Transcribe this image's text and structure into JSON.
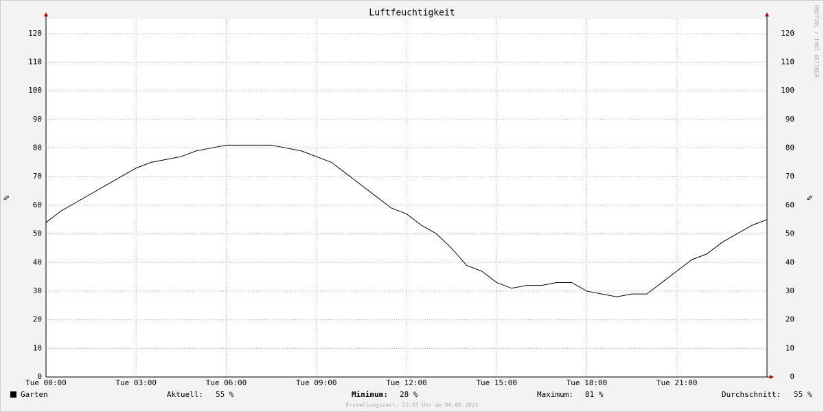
{
  "chart_data": {
    "type": "line",
    "title": "Luftfeuchtigkeit",
    "ylabel": "%",
    "y2label": "%",
    "watermark": "RRDTOOL / TOBI OETIKER",
    "x": [
      0,
      0.5,
      1,
      1.5,
      2,
      2.5,
      3,
      3.5,
      4,
      4.5,
      5,
      5.5,
      6,
      6.5,
      7,
      7.5,
      8,
      8.5,
      9,
      9.5,
      10,
      10.5,
      11,
      11.5,
      12,
      12.5,
      13,
      13.5,
      14,
      14.5,
      15,
      15.5,
      16,
      16.5,
      17,
      17.5,
      18,
      18.5,
      19,
      19.5,
      20,
      20.5,
      21,
      21.5,
      22,
      22.5,
      23,
      23.5,
      24
    ],
    "series": [
      {
        "name": "Garten",
        "color": "#000000",
        "values": [
          54,
          58,
          61,
          64,
          67,
          70,
          73,
          75,
          76,
          77,
          79,
          80,
          81,
          81,
          81,
          81,
          80,
          79,
          77,
          75,
          71,
          67,
          63,
          59,
          57,
          53,
          50,
          45,
          39,
          37,
          33,
          31,
          32,
          32,
          33,
          33,
          30,
          29,
          28,
          29,
          29,
          33,
          37,
          41,
          43,
          47,
          50,
          53,
          55
        ]
      }
    ],
    "xlim": [
      0,
      24
    ],
    "xticks": [
      {
        "value": 0,
        "label": "Tue 00:00"
      },
      {
        "value": 3,
        "label": "Tue 03:00"
      },
      {
        "value": 6,
        "label": "Tue 06:00"
      },
      {
        "value": 9,
        "label": "Tue 09:00"
      },
      {
        "value": 12,
        "label": "Tue 12:00"
      },
      {
        "value": 15,
        "label": "Tue 15:00"
      },
      {
        "value": 18,
        "label": "Tue 18:00"
      },
      {
        "value": 21,
        "label": "Tue 21:00"
      }
    ],
    "ylim": [
      0,
      125
    ],
    "yticks": [
      0,
      10,
      20,
      30,
      40,
      50,
      60,
      70,
      80,
      90,
      100,
      110,
      120
    ],
    "grid": true,
    "stats": [
      {
        "label": "Aktuell:",
        "value": "55 %"
      },
      {
        "label": "Minimum:",
        "value": "28 %"
      },
      {
        "label": "Maximum:",
        "value": "81 %"
      },
      {
        "label": "Durchschnitt:",
        "value": "55 %"
      }
    ],
    "footer": "Erstellungszeit: 23:55 Uhr am 06.06.2023"
  }
}
